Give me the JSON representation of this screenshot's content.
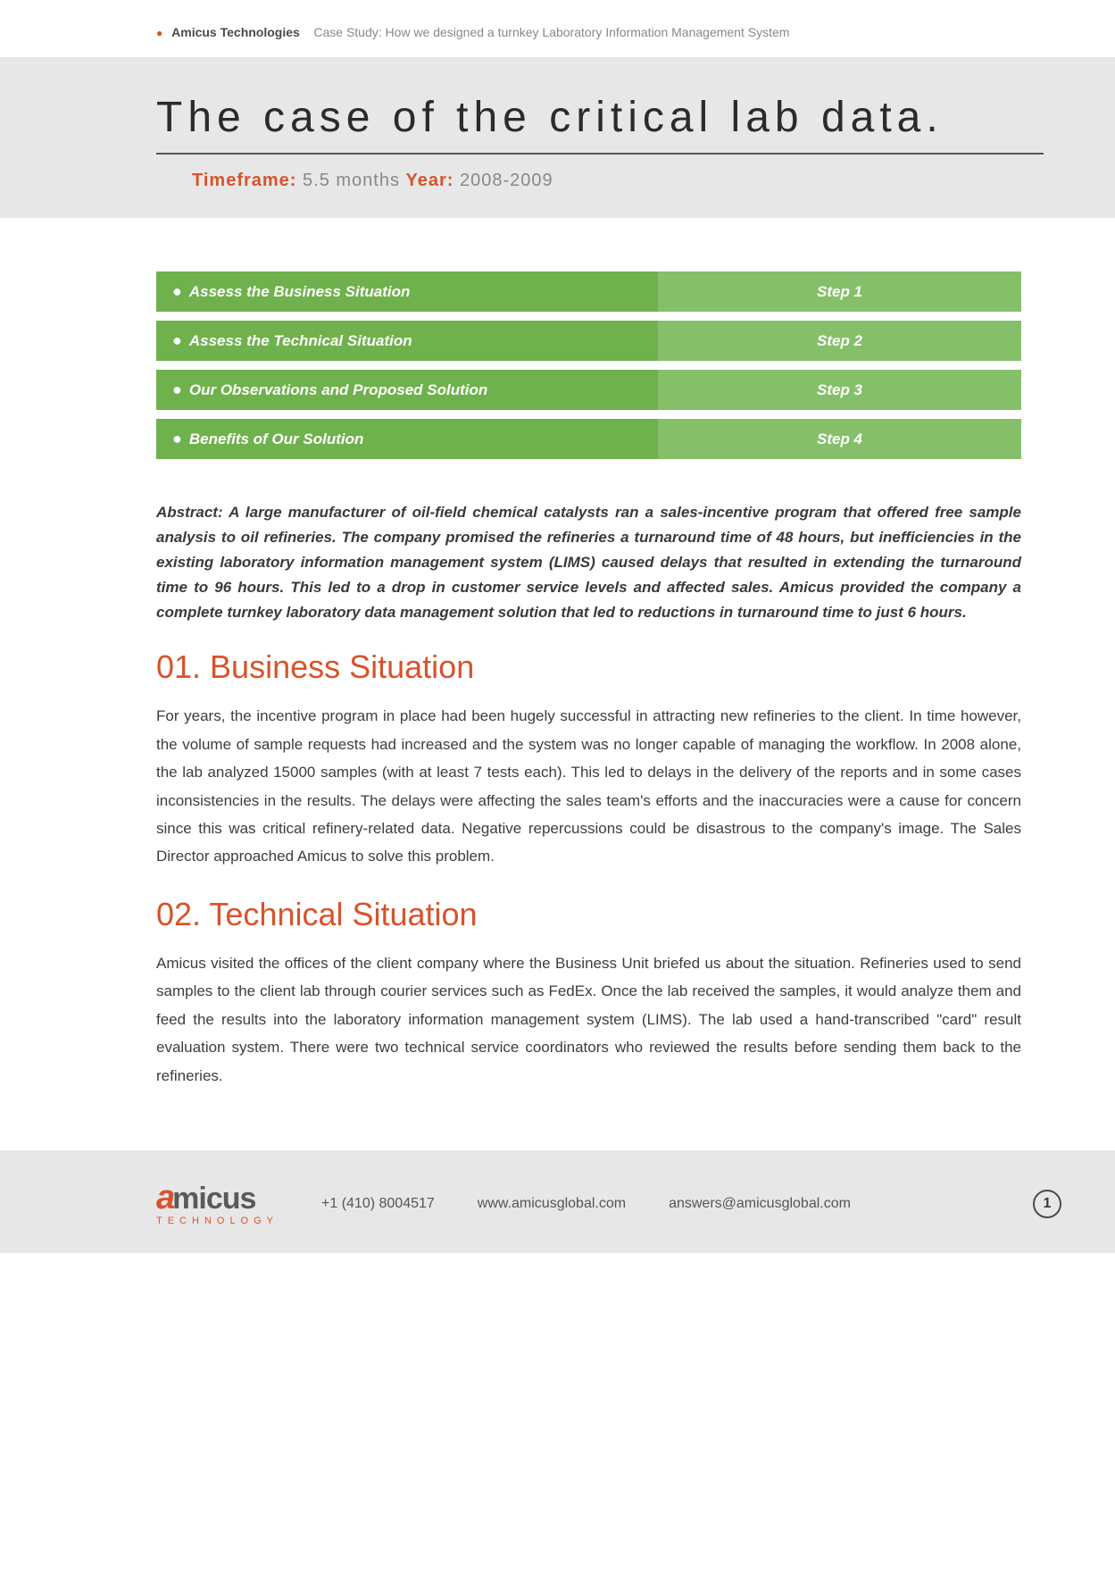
{
  "header": {
    "company": "Amicus Technologies",
    "subtitle": "Case Study: How we designed a turnkey Laboratory Information Management System"
  },
  "title_band": {
    "title": "The case of the critical lab data.",
    "background_color": "#e7e7e7",
    "title_font_size": 48,
    "title_letter_spacing": 6,
    "underline_color": "#555555"
  },
  "timeframe": {
    "label1": "Timeframe:",
    "value1": "5.5 months",
    "label2": "Year:",
    "value2": "2008-2009",
    "label_color": "#d8532a",
    "value_color": "#888888"
  },
  "steps": {
    "left_bg": "#6fb14c",
    "right_bg": "#86bf6a",
    "text_color": "#ffffff",
    "rows": [
      {
        "label": "Assess the Business Situation",
        "step": "Step 1"
      },
      {
        "label": "Assess the Technical Situation",
        "step": "Step 2"
      },
      {
        "label": "Our Observations and Proposed Solution",
        "step": "Step 3"
      },
      {
        "label": "Benefits of Our Solution",
        "step": "Step 4"
      }
    ]
  },
  "abstract": "Abstract: A large manufacturer of oil-field chemical catalysts ran a sales-incentive program that offered free sample analysis to oil refineries. The company promised the refineries a turnaround time of 48 hours, but inefficiencies in the existing laboratory information management system (LIMS) caused delays that resulted in extending the turnaround time to 96 hours. This led to a drop in customer service levels and affected sales. Amicus provided the company a complete turnkey laboratory data management solution that led to reductions in turnaround time to just 6 hours.",
  "sections": [
    {
      "heading": "01. Business Situation",
      "body": "For years, the incentive program in place had been hugely successful in attracting new refineries to the client. In time however, the volume of sample requests had increased and the system was no longer capable of managing the workflow. In 2008 alone, the lab analyzed 15000 samples (with at least 7 tests each). This led to delays in the delivery of the reports and in some cases inconsistencies in the results. The delays were affecting the sales team's efforts and the inaccuracies were a cause for concern since this was critical refinery-related data. Negative repercussions could be disastrous to the company's image. The Sales Director approached Amicus to solve this problem."
    },
    {
      "heading": "02. Technical Situation",
      "body": "Amicus visited the offices of the client company where the Business Unit briefed us about the situation. Refineries used to send samples to the client lab through courier services such as FedEx. Once the lab received the samples, it would analyze them and feed the results into the laboratory information management system (LIMS). The lab used a hand-transcribed \"card\" result evaluation system. There were two technical service coordinators who reviewed the results before sending them back to the refineries."
    }
  ],
  "section_heading_color": "#d8532a",
  "footer": {
    "logo_main": "micus",
    "logo_sub": "TECHNOLOGY",
    "phone": "+1 (410) 8004517",
    "web": "www.amicusglobal.com",
    "email": "answers@amicusglobal.com",
    "page": "1",
    "bg": "#e7e7e7",
    "accent": "#d8532a"
  }
}
